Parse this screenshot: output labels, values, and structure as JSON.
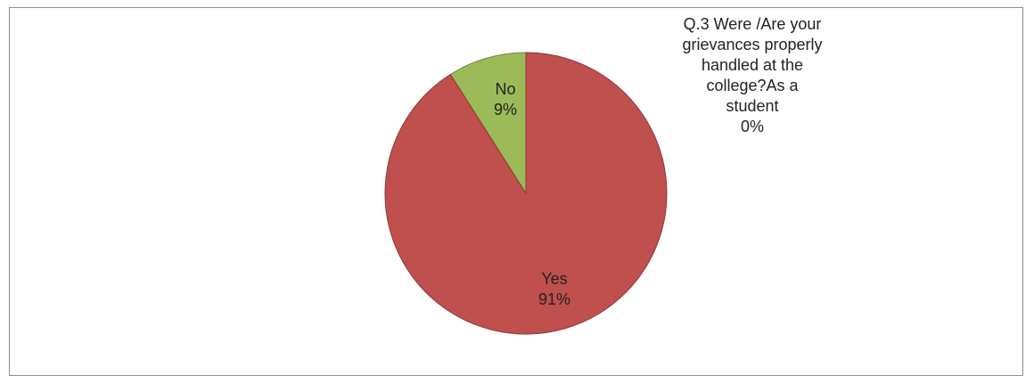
{
  "chart_data": {
    "type": "pie",
    "categories": [
      "Q.3 Were /Are your grievances properly handled at the college?As a student",
      "No",
      "Yes"
    ],
    "values": [
      0,
      9,
      91
    ],
    "data_labels": [
      [
        "Q.3 Were /Are your",
        "grievances properly",
        "handled at the",
        "college?As a",
        "student",
        "0%"
      ],
      [
        "No",
        "9%"
      ],
      [
        "Yes",
        "91%"
      ]
    ],
    "colors": [
      "#4f81bd",
      "#9bbb59",
      "#c0504d"
    ],
    "legend": "none"
  }
}
